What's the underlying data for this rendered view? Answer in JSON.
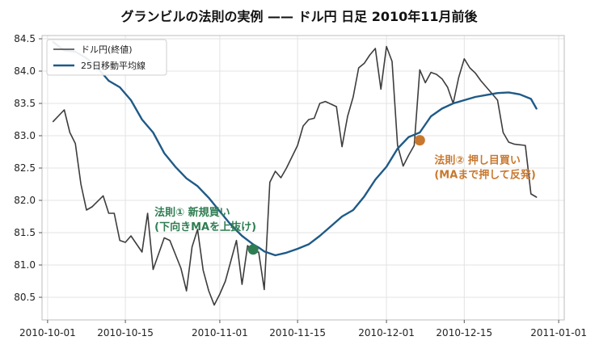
{
  "chart_data": {
    "type": "line",
    "title": "グランビルの法則の実例 —— ドル円 日足 2010年11月前後",
    "xlabel": "",
    "ylabel": "",
    "x_ticks": [
      "2010-10-01",
      "2010-10-15",
      "2010-11-01",
      "2010-11-15",
      "2010-12-01",
      "2010-12-15",
      "2011-01-01"
    ],
    "y_ticks": [
      "80.5",
      "81.0",
      "81.5",
      "82.0",
      "82.5",
      "83.0",
      "83.5",
      "84.0",
      "84.5"
    ],
    "xlim": [
      "2010-09-30",
      "2011-01-02"
    ],
    "ylim": [
      80.15,
      84.55
    ],
    "grid": true,
    "legend_position": "top-left",
    "series": [
      {
        "name": "ドル円(終値)",
        "color": "#3d3d3d",
        "x": [
          "2010-10-02",
          "2010-10-04",
          "2010-10-05",
          "2010-10-06",
          "2010-10-07",
          "2010-10-08",
          "2010-10-09",
          "2010-10-11",
          "2010-10-12",
          "2010-10-13",
          "2010-10-14",
          "2010-10-15",
          "2010-10-16",
          "2010-10-18",
          "2010-10-19",
          "2010-10-20",
          "2010-10-22",
          "2010-10-23",
          "2010-10-25",
          "2010-10-26",
          "2010-10-27",
          "2010-10-28",
          "2010-10-29",
          "2010-10-30",
          "2010-10-31",
          "2010-11-01",
          "2010-11-02",
          "2010-11-04",
          "2010-11-05",
          "2010-11-06",
          "2010-11-07",
          "2010-11-08",
          "2010-11-09",
          "2010-11-10",
          "2010-11-11",
          "2010-11-12",
          "2010-11-13",
          "2010-11-15",
          "2010-11-16",
          "2010-11-17",
          "2010-11-18",
          "2010-11-19",
          "2010-11-20",
          "2010-11-22",
          "2010-11-23",
          "2010-11-24",
          "2010-11-25",
          "2010-11-26",
          "2010-11-27",
          "2010-11-28",
          "2010-11-29",
          "2010-11-30",
          "2010-12-01",
          "2010-12-02",
          "2010-12-03",
          "2010-12-04",
          "2010-12-05",
          "2010-12-06",
          "2010-12-07",
          "2010-12-08",
          "2010-12-09",
          "2010-12-10",
          "2010-12-11",
          "2010-12-12",
          "2010-12-13",
          "2010-12-14",
          "2010-12-15",
          "2010-12-16",
          "2010-12-17",
          "2010-12-18",
          "2010-12-20",
          "2010-12-21",
          "2010-12-22",
          "2010-12-23",
          "2010-12-24",
          "2010-12-26",
          "2010-12-27",
          "2010-12-28"
        ],
        "values": [
          83.22,
          83.4,
          83.05,
          82.88,
          82.25,
          81.85,
          81.9,
          82.07,
          81.8,
          81.8,
          81.38,
          81.35,
          81.45,
          81.2,
          81.8,
          80.93,
          81.42,
          81.38,
          80.95,
          80.6,
          81.28,
          81.55,
          80.92,
          80.6,
          80.38,
          80.55,
          80.75,
          81.38,
          80.7,
          81.3,
          81.2,
          81.2,
          80.62,
          82.28,
          82.45,
          82.35,
          82.5,
          82.85,
          83.15,
          83.25,
          83.27,
          83.5,
          83.53,
          83.45,
          82.83,
          83.3,
          83.6,
          84.05,
          84.12,
          84.25,
          84.35,
          83.72,
          84.38,
          84.15,
          82.85,
          82.53,
          82.7,
          82.85,
          84.02,
          83.82,
          83.98,
          83.95,
          83.88,
          83.75,
          83.5,
          83.9,
          84.19,
          84.05,
          83.97,
          83.85,
          83.65,
          83.55,
          83.05,
          82.9,
          82.87,
          82.85,
          82.1,
          82.05
        ]
      },
      {
        "name": "25日移動平均線",
        "color": "#1f5a87",
        "x": [
          "2010-10-02",
          "2010-10-04",
          "2010-10-06",
          "2010-10-08",
          "2010-10-10",
          "2010-10-12",
          "2010-10-14",
          "2010-10-16",
          "2010-10-18",
          "2010-10-20",
          "2010-10-22",
          "2010-10-24",
          "2010-10-26",
          "2010-10-28",
          "2010-10-30",
          "2010-11-01",
          "2010-11-03",
          "2010-11-05",
          "2010-11-07",
          "2010-11-08",
          "2010-11-09",
          "2010-11-11",
          "2010-11-13",
          "2010-11-15",
          "2010-11-17",
          "2010-11-19",
          "2010-11-21",
          "2010-11-23",
          "2010-11-25",
          "2010-11-27",
          "2010-11-29",
          "2010-12-01",
          "2010-12-03",
          "2010-12-05",
          "2010-12-07",
          "2010-12-09",
          "2010-12-11",
          "2010-12-13",
          "2010-12-15",
          "2010-12-17",
          "2010-12-19",
          "2010-12-21",
          "2010-12-23",
          "2010-12-25",
          "2010-12-27",
          "2010-12-28"
        ],
        "values": [
          84.45,
          84.32,
          84.3,
          84.2,
          84.05,
          83.85,
          83.75,
          83.55,
          83.25,
          83.05,
          82.73,
          82.52,
          82.34,
          82.22,
          82.04,
          81.83,
          81.62,
          81.45,
          81.32,
          81.27,
          81.21,
          81.15,
          81.19,
          81.25,
          81.32,
          81.45,
          81.6,
          81.75,
          81.85,
          82.06,
          82.32,
          82.52,
          82.8,
          82.98,
          83.05,
          83.3,
          83.42,
          83.5,
          83.55,
          83.6,
          83.63,
          83.66,
          83.67,
          83.64,
          83.57,
          83.42
        ]
      }
    ],
    "annotations": [
      {
        "label": "法則① 新規買い",
        "sub": "(下向きMAを上抜け)",
        "point": {
          "x": "2010-11-07",
          "y": 81.24
        },
        "color": "#2e7d52"
      },
      {
        "label": "法則② 押し目買い",
        "sub": "(MAまで押して反発)",
        "point": {
          "x": "2010-12-07",
          "y": 82.93
        },
        "color": "#c8782e"
      }
    ]
  }
}
